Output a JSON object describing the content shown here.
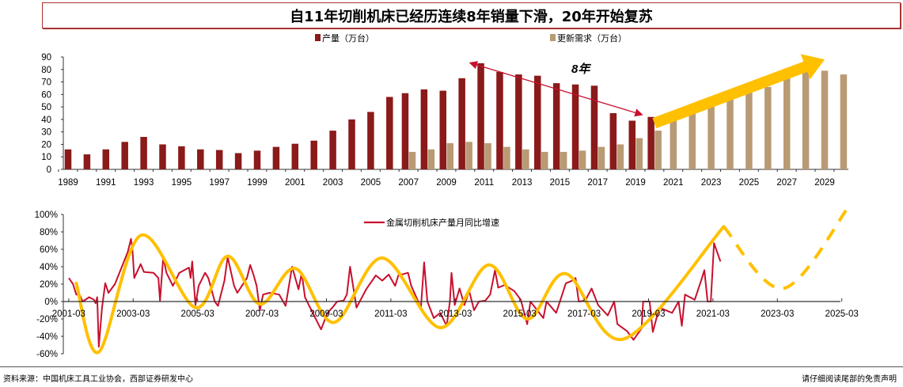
{
  "title": "自11年切削机床已经历连续8年销量下滑，20年开始复苏",
  "footer": {
    "source": "资料来源：中国机床工具工业协会，西部证券研发中心",
    "disclaimer": "请仔细阅读尾部的免责声明"
  },
  "colors": {
    "production": "#8B1A1A",
    "demand": "#B89A74",
    "growth": "#C8102E",
    "trend": "#FFC000"
  },
  "chart_data": [
    {
      "type": "bar",
      "title": "",
      "xlabel": "",
      "ylabel": "",
      "ylim": [
        0,
        90
      ],
      "yticks": [
        0,
        10,
        20,
        30,
        40,
        50,
        60,
        70,
        80,
        90
      ],
      "xticks": [
        "1989",
        "1991",
        "1993",
        "1995",
        "1997",
        "1999",
        "2001",
        "2003",
        "2005",
        "2007",
        "2009",
        "2011",
        "2013",
        "2015",
        "2017",
        "2019",
        "2021",
        "2023",
        "2025",
        "2027",
        "2029"
      ],
      "legend_position": "top",
      "grid": false,
      "categories": [
        1989,
        1990,
        1991,
        1992,
        1993,
        1994,
        1995,
        1996,
        1997,
        1998,
        1999,
        2000,
        2001,
        2002,
        2003,
        2004,
        2005,
        2006,
        2007,
        2008,
        2009,
        2010,
        2011,
        2012,
        2013,
        2014,
        2015,
        2016,
        2017,
        2018,
        2019,
        2020,
        2021,
        2022,
        2023,
        2024,
        2025,
        2026,
        2027,
        2028,
        2029,
        2030
      ],
      "series": [
        {
          "name": "产量（万台）",
          "values": [
            16,
            12,
            16,
            22,
            26,
            20,
            18.5,
            16,
            15.5,
            13,
            15,
            18,
            20.5,
            23,
            31,
            40,
            46,
            58,
            61,
            64,
            63,
            73,
            85,
            78,
            76,
            75,
            69,
            68,
            67,
            45,
            39,
            42,
            null,
            null,
            null,
            null,
            null,
            null,
            null,
            null,
            null,
            null
          ]
        },
        {
          "name": "更新需求（万台）",
          "values": [
            null,
            null,
            null,
            null,
            null,
            null,
            null,
            null,
            null,
            null,
            null,
            null,
            null,
            null,
            null,
            null,
            null,
            null,
            14,
            16,
            21,
            22,
            21,
            18,
            16,
            14,
            14,
            15,
            18,
            20,
            25,
            31,
            39,
            48,
            55,
            61,
            62,
            66,
            73,
            78,
            79,
            76
          ]
        }
      ],
      "annotations": {
        "decline_arrow": {
          "label": "8年",
          "from": [
            2010.3,
            85
          ],
          "to": [
            2019.3,
            44
          ]
        },
        "recovery_arrow": {
          "from": [
            2020,
            37
          ],
          "to": [
            2029,
            88
          ]
        }
      }
    },
    {
      "type": "line",
      "title": "",
      "xlabel": "",
      "ylabel": "",
      "ylim": [
        -60,
        100
      ],
      "yticks": [
        "-60%",
        "-40%",
        "-20%",
        "0%",
        "20%",
        "40%",
        "60%",
        "80%",
        "100%"
      ],
      "xticks": [
        "2001-03",
        "2003-03",
        "2005-03",
        "2007-03",
        "2009-03",
        "2011-03",
        "2013-03",
        "2015-03",
        "2017-03",
        "2019-03",
        "2021-03",
        "2023-03",
        "2025-03"
      ],
      "legend_position": "top-center",
      "grid": false,
      "series": [
        {
          "name": "金属切削机床产量月同比增速",
          "x": [
            2001.17,
            2001.3,
            2001.4,
            2001.5,
            2001.6,
            2001.8,
            2001.95,
            2002.0,
            2002.05,
            2002.1,
            2002.2,
            2002.3,
            2002.4,
            2002.6,
            2003.0,
            2003.1,
            2003.15,
            2003.2,
            2003.4,
            2003.5,
            2003.8,
            2003.95,
            2004.0,
            2004.1,
            2004.2,
            2004.4,
            2004.6,
            2004.9,
            2004.95,
            2005.0,
            2005.1,
            2005.2,
            2005.4,
            2005.5,
            2005.7,
            2005.8,
            2006.0,
            2006.1,
            2006.3,
            2006.4,
            2006.7,
            2006.8,
            2006.9,
            2007.0,
            2007.1,
            2007.2,
            2007.4,
            2007.7,
            2007.9,
            2008.1,
            2008.3,
            2008.4,
            2008.5,
            2008.7,
            2009.0,
            2009.2,
            2009.35,
            2009.5,
            2009.7,
            2009.8,
            2009.9,
            2010.1,
            2010.4,
            2010.7,
            2010.9,
            2011.1,
            2011.3,
            2011.4,
            2011.7,
            2011.8,
            2012.1,
            2012.2,
            2012.3,
            2012.5,
            2012.7,
            2012.9,
            2013.0,
            2013.05,
            2013.15,
            2013.3,
            2013.45,
            2013.6,
            2013.75,
            2013.9,
            2014.1,
            2014.25,
            2014.4,
            2014.5,
            2014.7,
            2015.0,
            2015.2,
            2015.4,
            2015.5,
            2015.9,
            2016.0,
            2016.3,
            2016.6,
            2016.8,
            2016.9,
            2017.0,
            2017.2,
            2017.4,
            2017.6,
            2017.9,
            2018.1,
            2018.2,
            2018.5,
            2018.7,
            2018.95,
            2019.0,
            2019.2,
            2019.3,
            2019.5,
            2019.9,
            2020.1,
            2020.2,
            2020.3,
            2020.6,
            2020.8,
            2020.9,
            2021.0,
            2021.1,
            2021.2,
            2021.4
          ],
          "values": [
            27,
            20,
            8,
            8,
            0,
            5,
            2,
            -2,
            5,
            -52,
            -7,
            21,
            10,
            20,
            57,
            72,
            57,
            27,
            43,
            34,
            33,
            27,
            1,
            51,
            33,
            18,
            33,
            39,
            27,
            46,
            -4,
            18,
            33,
            27,
            0,
            -5,
            24,
            51,
            18,
            10,
            27,
            42,
            31,
            18,
            -10,
            8,
            10,
            8,
            -5,
            40,
            14,
            33,
            5,
            -10,
            -32,
            -13,
            -7,
            0,
            1,
            8,
            40,
            -7,
            14,
            30,
            24,
            31,
            18,
            30,
            33,
            18,
            -7,
            45,
            0,
            -19,
            -13,
            -28,
            0,
            33,
            -4,
            15,
            -4,
            12,
            -10,
            0,
            1,
            8,
            36,
            16,
            19,
            12,
            2,
            -26,
            0,
            -19,
            0,
            -13,
            21,
            24,
            27,
            0,
            1,
            15,
            -4,
            -16,
            0,
            -26,
            -34,
            -44,
            -31,
            0,
            0,
            -35,
            -7,
            -13,
            0,
            -28,
            8,
            2,
            24,
            36,
            0,
            0,
            67,
            46
          ]
        },
        {
          "x": [
            2001.4,
            2002.1,
            2003.4,
            2005.1,
            2006.1,
            2007.1,
            2008.2,
            2009.4,
            2010.9,
            2012.7,
            2014.2,
            2015.4,
            2016.6,
            2018.4,
            2021.5
          ],
          "values": [
            21,
            -58,
            76,
            -7,
            52,
            -3,
            38,
            -24,
            50,
            -30,
            42,
            -20,
            32,
            -43,
            86
          ]
        },
        {
          "x": [
            2021.5,
            2023.35,
            2025.4
          ],
          "values": [
            86,
            15,
            110
          ],
          "style": "dashed"
        }
      ]
    }
  ]
}
